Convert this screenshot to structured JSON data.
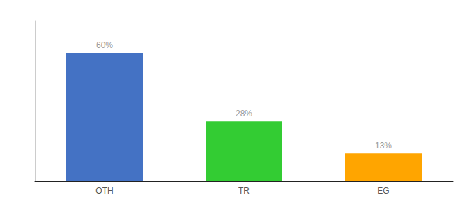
{
  "chart_data": {
    "type": "bar",
    "categories": [
      "OTH",
      "TR",
      "EG"
    ],
    "values": [
      60,
      28,
      13
    ],
    "value_labels": [
      "60%",
      "28%",
      "13%"
    ],
    "colors": [
      "#4472C4",
      "#33CC33",
      "#FFA500"
    ],
    "ylim": [
      0,
      75
    ],
    "grid": false,
    "data_labels": true,
    "tick_labels": "x"
  }
}
